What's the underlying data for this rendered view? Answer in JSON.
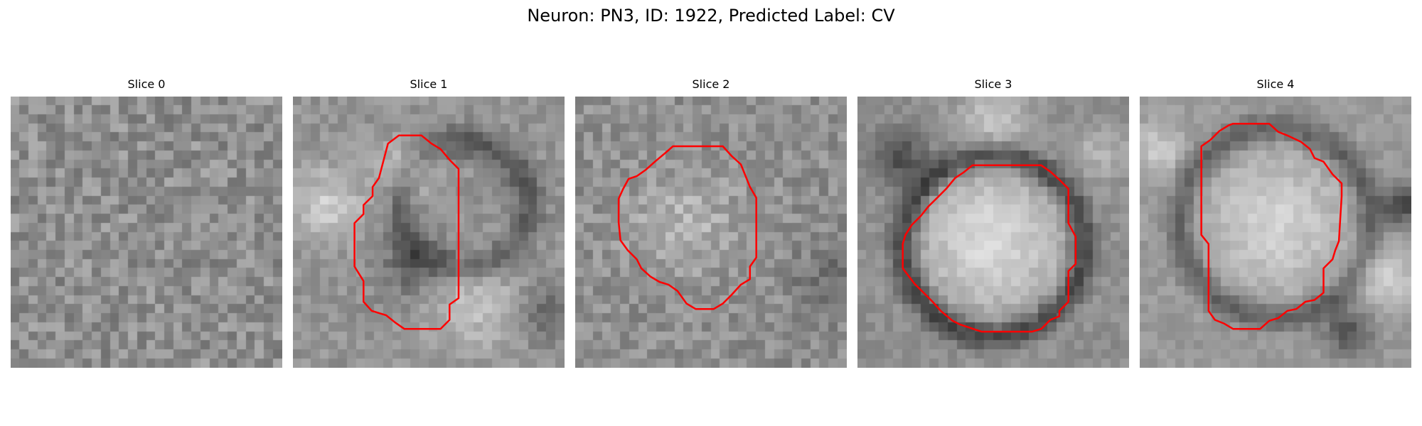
{
  "figure": {
    "title": "Neuron: PN3, ID: 1922, Predicted Label: CV",
    "contour_color": "#ff0000",
    "colormap": "gray",
    "grid_size": 30
  },
  "panels": [
    {
      "label": "Slice 0",
      "has_contour": false,
      "contour": []
    },
    {
      "label": "Slice 1",
      "has_contour": true,
      "contour": [
        [
          10.5,
          5.2
        ],
        [
          11.7,
          4.3
        ],
        [
          14.2,
          4.3
        ],
        [
          15.3,
          5.2
        ],
        [
          16.3,
          5.8
        ],
        [
          17.3,
          7.0
        ],
        [
          18.3,
          8.0
        ],
        [
          18.3,
          22.3
        ],
        [
          17.3,
          23.0
        ],
        [
          17.3,
          24.7
        ],
        [
          16.3,
          25.7
        ],
        [
          12.3,
          25.7
        ],
        [
          11.3,
          25.0
        ],
        [
          10.3,
          24.2
        ],
        [
          8.7,
          23.7
        ],
        [
          7.8,
          22.7
        ],
        [
          7.8,
          20.4
        ],
        [
          6.8,
          18.8
        ],
        [
          6.8,
          14.0
        ],
        [
          7.8,
          13.0
        ],
        [
          7.8,
          12.0
        ],
        [
          8.8,
          11.0
        ],
        [
          8.8,
          10.0
        ],
        [
          9.5,
          9.0
        ]
      ]
    },
    {
      "label": "Slice 2",
      "has_contour": true,
      "contour": [
        [
          5.9,
          9.1
        ],
        [
          6.8,
          8.8
        ],
        [
          7.8,
          8.1
        ],
        [
          8.8,
          7.2
        ],
        [
          10.0,
          6.2
        ],
        [
          10.8,
          5.5
        ],
        [
          16.3,
          5.5
        ],
        [
          17.3,
          6.6
        ],
        [
          18.3,
          7.5
        ],
        [
          19.3,
          10.0
        ],
        [
          20.0,
          11.2
        ],
        [
          20.0,
          17.8
        ],
        [
          19.3,
          18.8
        ],
        [
          19.3,
          20.2
        ],
        [
          18.3,
          20.8
        ],
        [
          17.3,
          21.9
        ],
        [
          16.3,
          22.9
        ],
        [
          15.3,
          23.5
        ],
        [
          13.3,
          23.5
        ],
        [
          12.3,
          22.9
        ],
        [
          11.3,
          21.5
        ],
        [
          10.3,
          20.8
        ],
        [
          9.3,
          20.5
        ],
        [
          8.3,
          19.9
        ],
        [
          7.3,
          19.0
        ],
        [
          6.8,
          18.0
        ],
        [
          5.8,
          17.0
        ],
        [
          5.0,
          15.9
        ],
        [
          4.8,
          13.9
        ],
        [
          4.8,
          11.3
        ],
        [
          5.3,
          10.2
        ]
      ]
    },
    {
      "label": "Slice 3",
      "has_contour": true,
      "contour": [
        [
          11.7,
          8.4
        ],
        [
          12.7,
          7.6
        ],
        [
          13.7,
          7.6
        ],
        [
          20.3,
          7.6
        ],
        [
          21.3,
          8.3
        ],
        [
          22.3,
          9.2
        ],
        [
          23.3,
          10.2
        ],
        [
          23.3,
          14.0
        ],
        [
          24.1,
          15.5
        ],
        [
          24.1,
          18.5
        ],
        [
          23.3,
          19.3
        ],
        [
          23.3,
          22.7
        ],
        [
          22.3,
          23.7
        ],
        [
          22.3,
          24.3
        ],
        [
          21.3,
          24.7
        ],
        [
          20.3,
          25.7
        ],
        [
          19.3,
          26.0
        ],
        [
          13.7,
          26.0
        ],
        [
          11.3,
          25.2
        ],
        [
          10.5,
          24.8
        ],
        [
          9.2,
          23.7
        ],
        [
          8.3,
          22.7
        ],
        [
          7.3,
          21.7
        ],
        [
          6.3,
          20.7
        ],
        [
          5.0,
          19.0
        ],
        [
          5.0,
          16.3
        ],
        [
          5.3,
          15.3
        ],
        [
          6.0,
          14.2
        ],
        [
          7.0,
          13.2
        ],
        [
          7.8,
          12.2
        ],
        [
          8.8,
          11.2
        ],
        [
          9.8,
          10.2
        ],
        [
          10.8,
          9.0
        ]
      ]
    },
    {
      "label": "Slice 4",
      "has_contour": true,
      "contour": [
        [
          8.8,
          3.8
        ],
        [
          9.8,
          3.2
        ],
        [
          10.3,
          3.0
        ],
        [
          14.3,
          3.0
        ],
        [
          15.3,
          3.9
        ],
        [
          16.3,
          4.3
        ],
        [
          17.8,
          5.0
        ],
        [
          18.8,
          5.8
        ],
        [
          19.3,
          6.8
        ],
        [
          20.3,
          7.2
        ],
        [
          21.3,
          8.6
        ],
        [
          22.3,
          9.6
        ],
        [
          22.3,
          11.0
        ],
        [
          22.0,
          16.0
        ],
        [
          21.6,
          17.0
        ],
        [
          21.3,
          18.0
        ],
        [
          20.3,
          19.0
        ],
        [
          20.3,
          21.7
        ],
        [
          19.3,
          22.5
        ],
        [
          18.3,
          22.7
        ],
        [
          17.3,
          23.5
        ],
        [
          16.3,
          23.7
        ],
        [
          15.3,
          24.5
        ],
        [
          14.3,
          24.8
        ],
        [
          13.3,
          25.7
        ],
        [
          10.3,
          25.7
        ],
        [
          9.3,
          25.1
        ],
        [
          8.3,
          24.7
        ],
        [
          7.6,
          23.7
        ],
        [
          7.6,
          17.0
        ],
        [
          7.6,
          16.3
        ],
        [
          6.8,
          15.3
        ],
        [
          6.8,
          5.5
        ],
        [
          7.8,
          4.8
        ]
      ]
    }
  ]
}
